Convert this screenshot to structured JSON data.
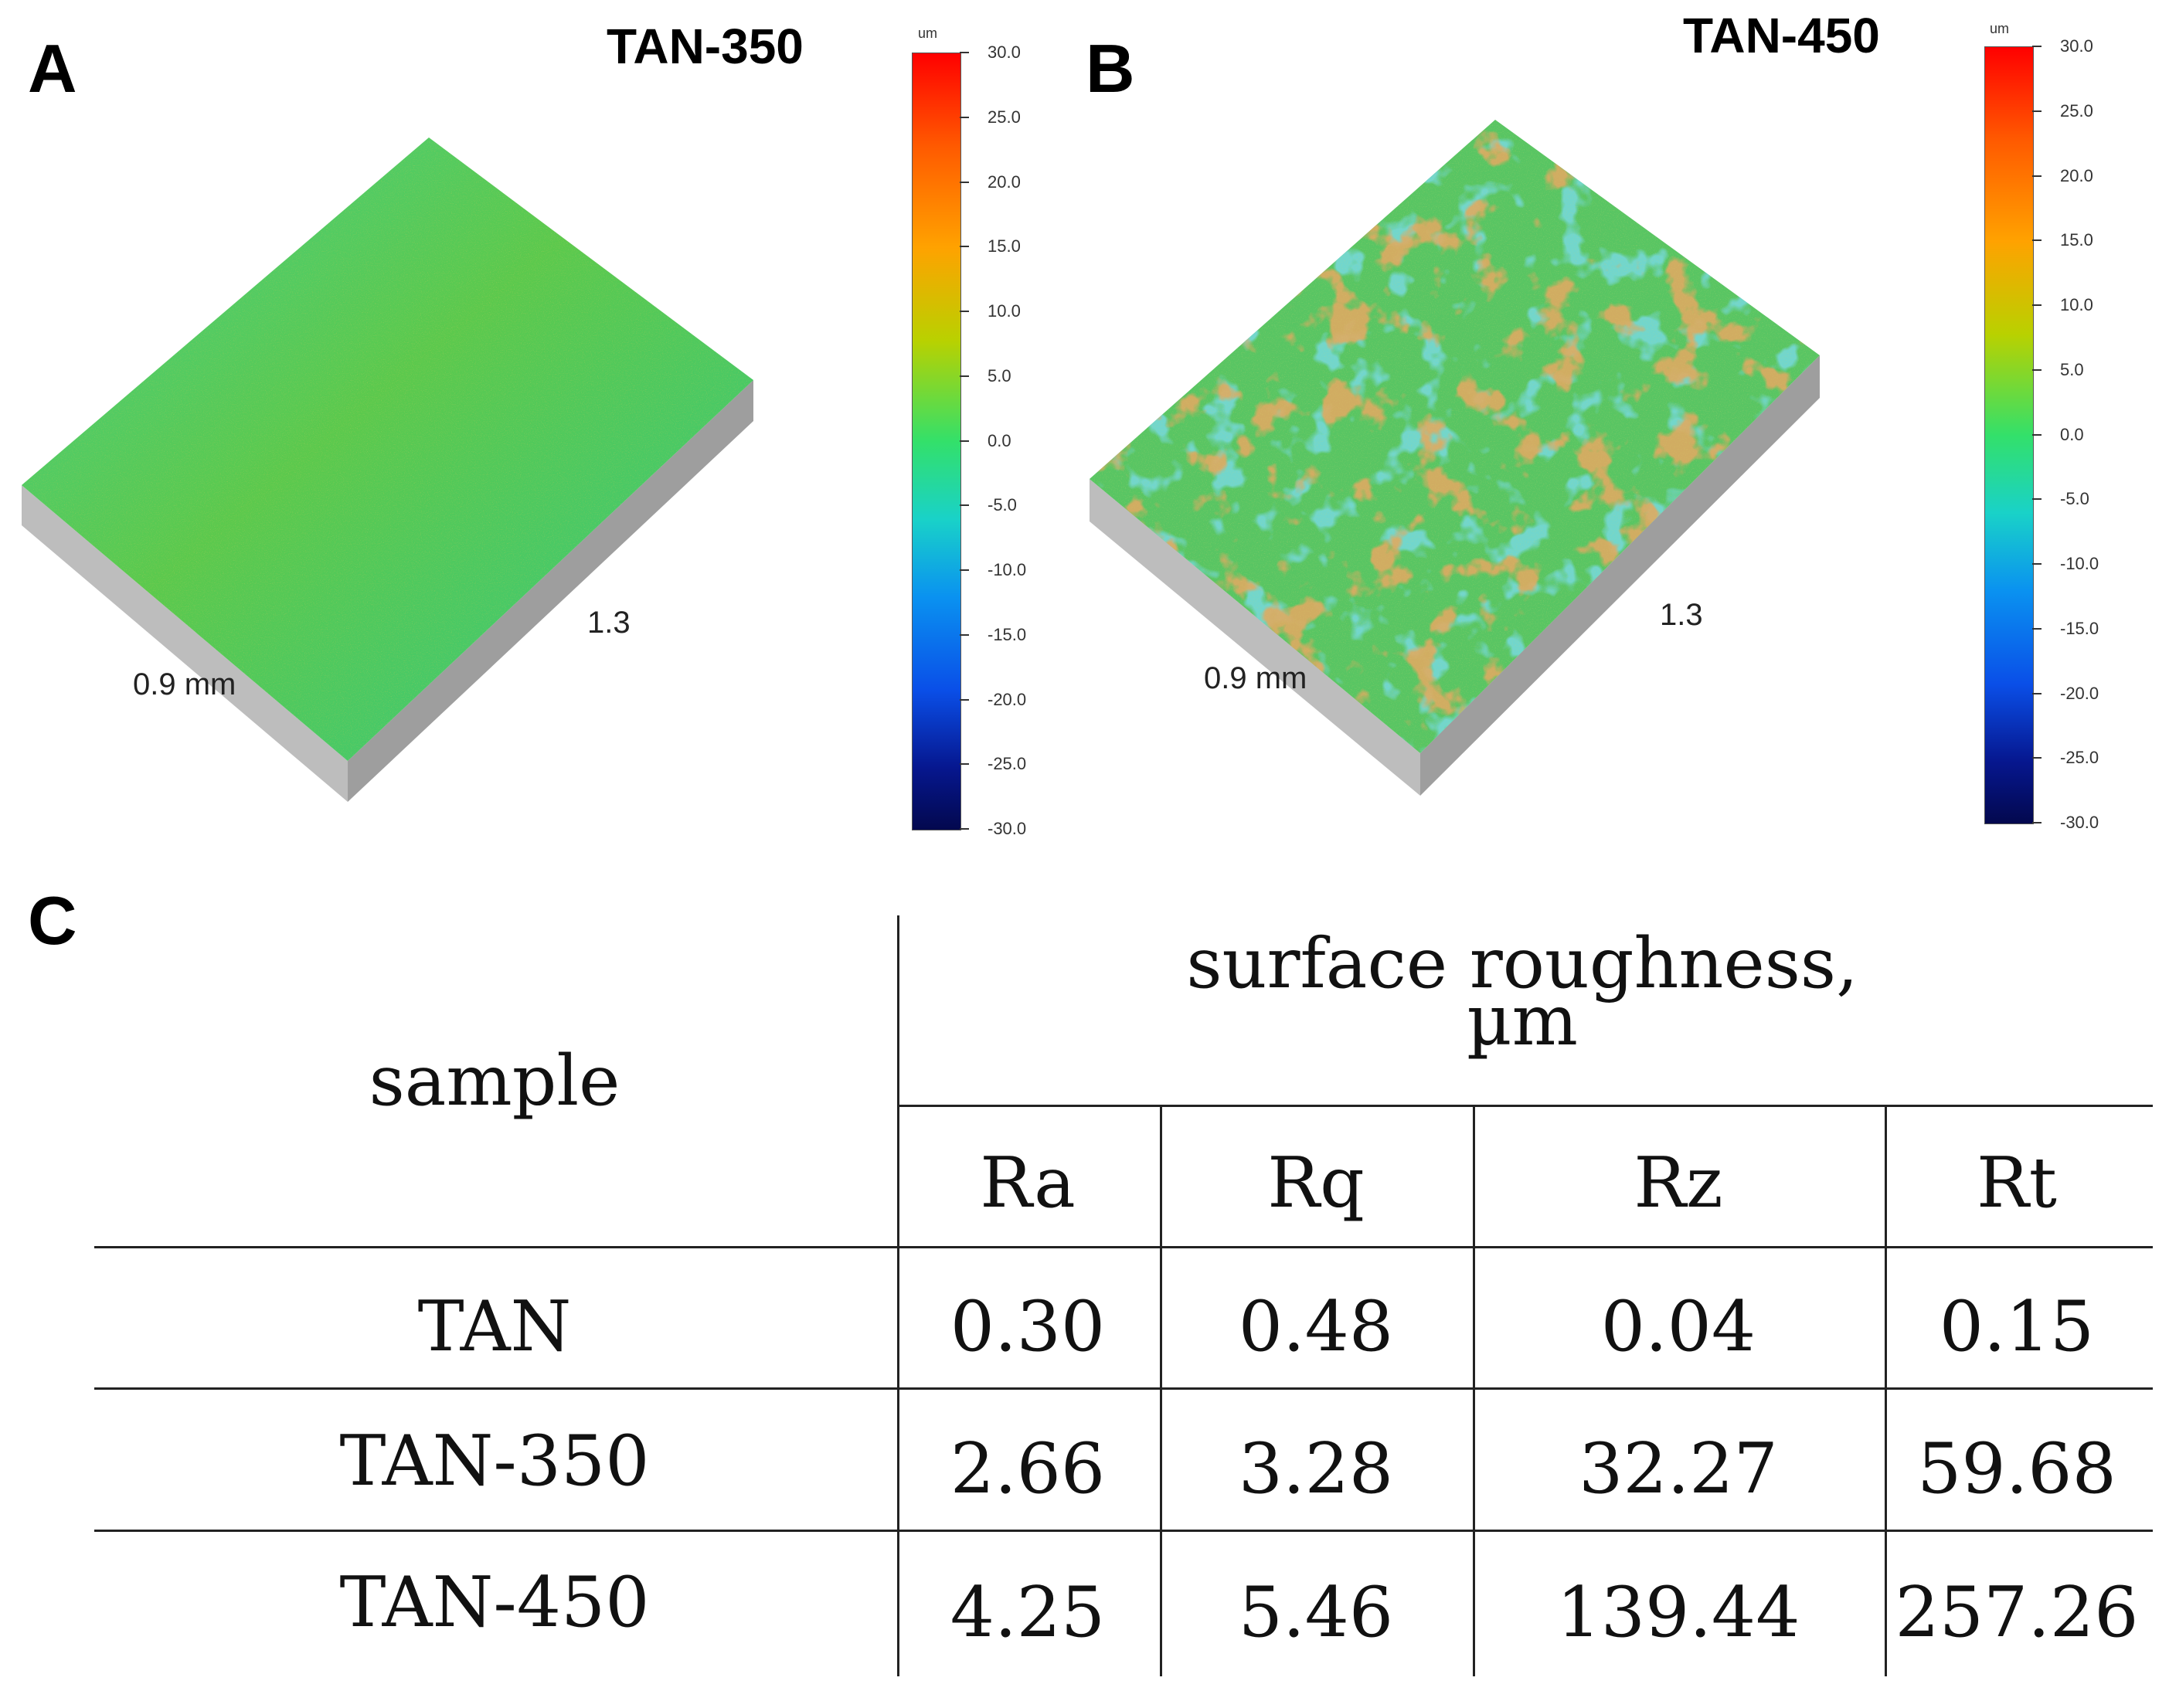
{
  "panels": [
    {
      "letter": "A",
      "title": "TAN-350",
      "axis_x": "0.9 mm",
      "axis_y": "1.3",
      "colorbar_unit": "um",
      "colorbar_ticks": [
        "30.0",
        "25.0",
        "20.0",
        "15.0",
        "10.0",
        "5.0",
        "0.0",
        "-5.0",
        "-10.0",
        "-15.0",
        "-20.0",
        "-25.0",
        "-30.0"
      ]
    },
    {
      "letter": "B",
      "title": "TAN-450",
      "axis_x": "0.9 mm",
      "axis_y": "1.3",
      "colorbar_unit": "um",
      "colorbar_ticks": [
        "30.0",
        "25.0",
        "20.0",
        "15.0",
        "10.0",
        "5.0",
        "0.0",
        "-5.0",
        "-10.0",
        "-15.0",
        "-20.0",
        "-25.0",
        "-30.0"
      ]
    }
  ],
  "table": {
    "letter": "C",
    "sample_header": "sample",
    "group_header_line1": "surface roughness,",
    "group_header_line2": "µm",
    "columns": [
      "Ra",
      "Rq",
      "Rz",
      "Rt"
    ],
    "rows": [
      {
        "sample": "TAN",
        "values": [
          "0.30",
          "0.48",
          "0.04",
          "0.15"
        ]
      },
      {
        "sample": "TAN-350",
        "values": [
          "2.66",
          "3.28",
          "32.27",
          "59.68"
        ]
      },
      {
        "sample": "TAN-450",
        "values": [
          "4.25",
          "5.46",
          "139.44",
          "257.26"
        ]
      }
    ]
  },
  "colors": {
    "surface_a": "#3fcf63",
    "surface_b_base": "#4fc46a",
    "surface_b_high": "#c0651e",
    "surface_b_low": "#2fb4b8",
    "block_side": "#a9a9a9"
  }
}
